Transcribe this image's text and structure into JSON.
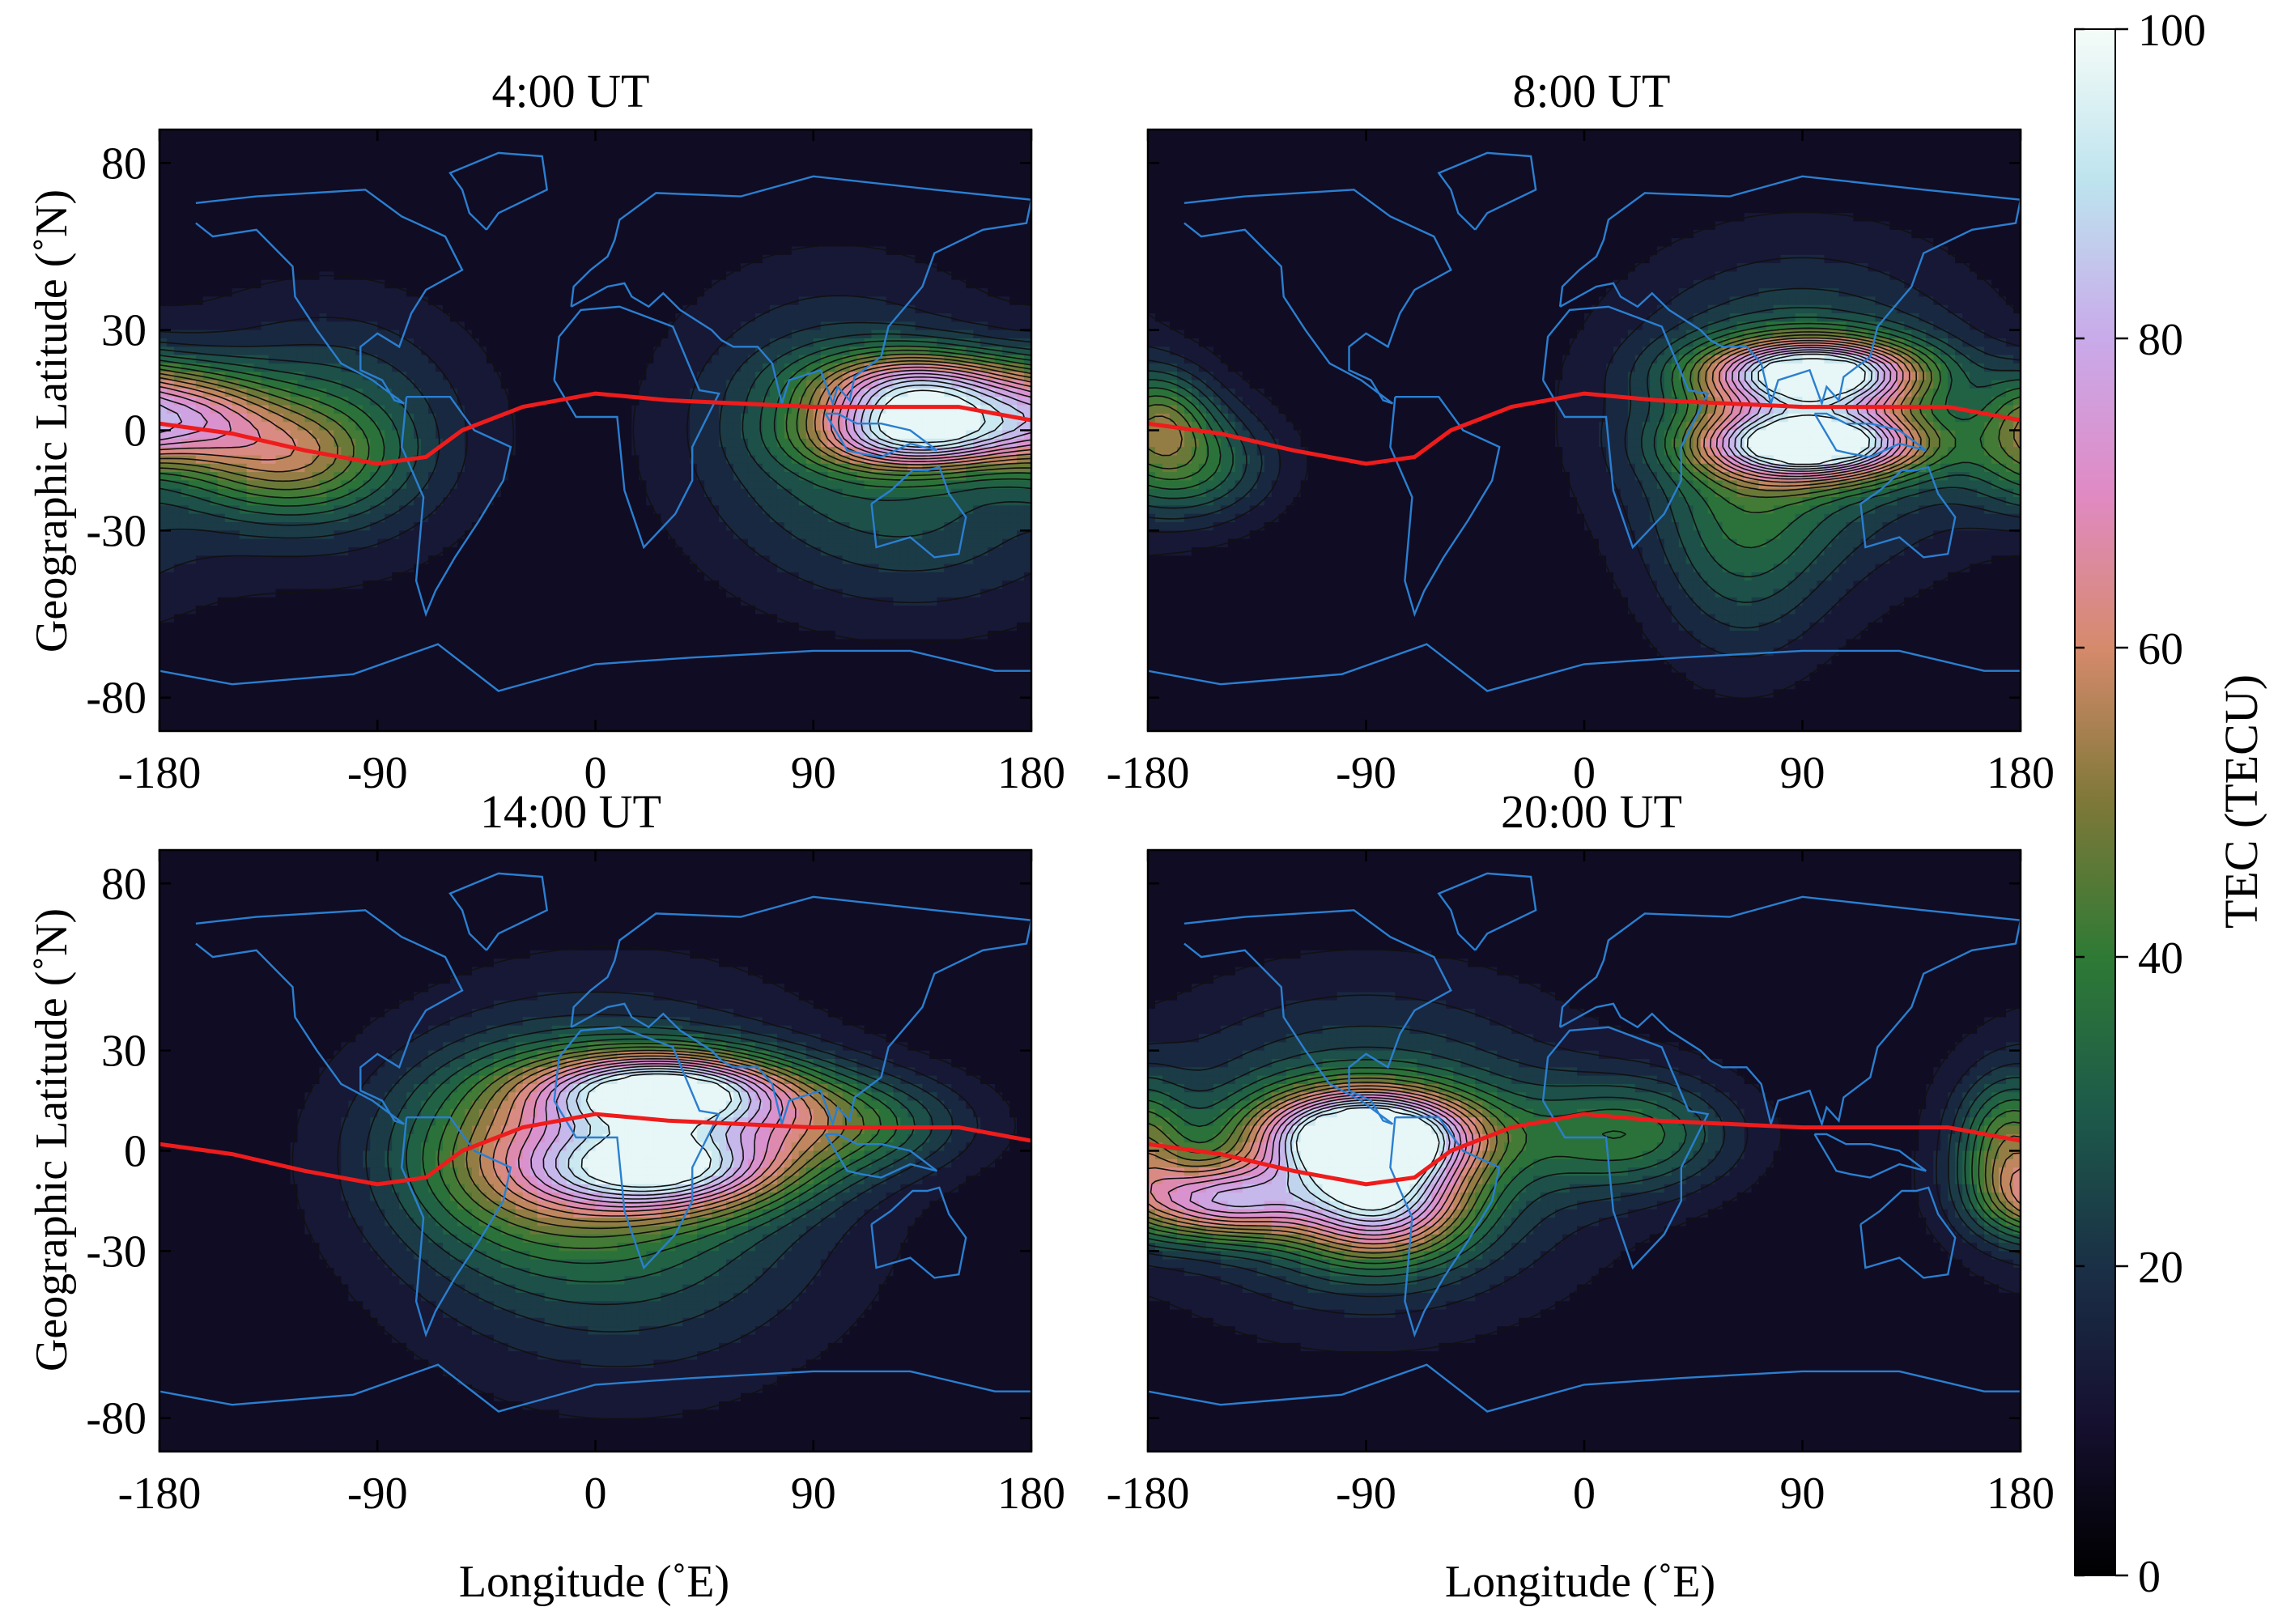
{
  "chart_data": [
    {
      "type": "heatmap",
      "title": "4:00 UT",
      "xlabel": "",
      "ylabel": "Geographic Latitude (˚N)",
      "xlim": [
        -180,
        180
      ],
      "ylim": [
        -90,
        90
      ],
      "x_ticks": [
        "-180",
        "-90",
        "0",
        "90",
        "180"
      ],
      "y_ticks": [
        "80",
        "30",
        "0",
        "-30",
        "-80"
      ],
      "peaks": [
        {
          "lon": 135,
          "lat": 12,
          "tec": 62,
          "sx": 30,
          "sy": 8
        },
        {
          "lon": 135,
          "lat": -2,
          "tec": 60,
          "sx": 30,
          "sy": 7
        },
        {
          "lon": 100,
          "lat": 0,
          "tec": 22,
          "sx": 45,
          "sy": 30
        },
        {
          "lon": 150,
          "lat": -30,
          "tec": 10,
          "sx": 40,
          "sy": 20
        },
        {
          "lon": -170,
          "lat": 5,
          "tec": 40,
          "sx": 25,
          "sy": 10
        },
        {
          "lon": -130,
          "lat": -8,
          "tec": 30,
          "sx": 30,
          "sy": 12
        },
        {
          "lon": -110,
          "lat": 0,
          "tec": 22,
          "sx": 40,
          "sy": 25
        }
      ],
      "equator": [
        [
          -180,
          2
        ],
        [
          -150,
          -1
        ],
        [
          -120,
          -6
        ],
        [
          -90,
          -10
        ],
        [
          -70,
          -8
        ],
        [
          -55,
          0
        ],
        [
          -30,
          7
        ],
        [
          0,
          11
        ],
        [
          30,
          9
        ],
        [
          90,
          7
        ],
        [
          150,
          7
        ],
        [
          180,
          3
        ]
      ]
    },
    {
      "type": "heatmap",
      "title": "8:00 UT",
      "xlabel": "",
      "ylabel": "",
      "xlim": [
        -180,
        180
      ],
      "ylim": [
        -90,
        90
      ],
      "x_ticks": [
        "-180",
        "-90",
        "0",
        "90",
        "180"
      ],
      "y_ticks": [],
      "peaks": [
        {
          "lon": 95,
          "lat": 17,
          "tec": 82,
          "sx": 30,
          "sy": 7
        },
        {
          "lon": 95,
          "lat": -4,
          "tec": 84,
          "sx": 30,
          "sy": 7
        },
        {
          "lon": 90,
          "lat": 5,
          "tec": 30,
          "sx": 50,
          "sy": 30
        },
        {
          "lon": 65,
          "lat": -35,
          "tec": 18,
          "sx": 25,
          "sy": 25
        },
        {
          "lon": -165,
          "lat": -10,
          "tec": 30,
          "sx": 25,
          "sy": 12
        },
        {
          "lon": -175,
          "lat": 5,
          "tec": 25,
          "sx": 15,
          "sy": 10
        }
      ],
      "equator": [
        [
          -180,
          2
        ],
        [
          -150,
          -1
        ],
        [
          -120,
          -6
        ],
        [
          -90,
          -10
        ],
        [
          -70,
          -8
        ],
        [
          -55,
          0
        ],
        [
          -30,
          7
        ],
        [
          0,
          11
        ],
        [
          30,
          9
        ],
        [
          90,
          7
        ],
        [
          150,
          7
        ],
        [
          180,
          3
        ]
      ]
    },
    {
      "type": "heatmap",
      "title": "14:00 UT",
      "xlabel": "Longitude (˚E)",
      "ylabel": "Geographic Latitude (˚N)",
      "xlim": [
        -180,
        180
      ],
      "ylim": [
        -90,
        90
      ],
      "x_ticks": [
        "-180",
        "-90",
        "0",
        "90",
        "180"
      ],
      "y_ticks": [
        "80",
        "30",
        "0",
        "-30",
        "-80"
      ],
      "peaks": [
        {
          "lon": 30,
          "lat": 18,
          "tec": 78,
          "sx": 35,
          "sy": 8
        },
        {
          "lon": 30,
          "lat": -5,
          "tec": 62,
          "sx": 35,
          "sy": 9
        },
        {
          "lon": 10,
          "lat": -10,
          "tec": 30,
          "sx": 60,
          "sy": 35
        },
        {
          "lon": 100,
          "lat": 8,
          "tec": 30,
          "sx": 35,
          "sy": 10
        },
        {
          "lon": -30,
          "lat": 0,
          "tec": 28,
          "sx": 40,
          "sy": 20
        }
      ],
      "equator": [
        [
          -180,
          2
        ],
        [
          -150,
          -1
        ],
        [
          -120,
          -6
        ],
        [
          -90,
          -10
        ],
        [
          -70,
          -8
        ],
        [
          -55,
          0
        ],
        [
          -30,
          7
        ],
        [
          0,
          11
        ],
        [
          30,
          9
        ],
        [
          90,
          7
        ],
        [
          150,
          7
        ],
        [
          180,
          3
        ]
      ]
    },
    {
      "type": "heatmap",
      "title": "20:00 UT",
      "xlabel": "Longitude (˚E)",
      "ylabel": "",
      "xlim": [
        -180,
        180
      ],
      "ylim": [
        -90,
        90
      ],
      "x_ticks": [
        "-180",
        "-90",
        "0",
        "90",
        "180"
      ],
      "y_ticks": [],
      "peaks": [
        {
          "lon": -90,
          "lat": 5,
          "tec": 85,
          "sx": 30,
          "sy": 9
        },
        {
          "lon": -85,
          "lat": -15,
          "tec": 60,
          "sx": 25,
          "sy": 12
        },
        {
          "lon": -150,
          "lat": -15,
          "tec": 55,
          "sx": 25,
          "sy": 8
        },
        {
          "lon": -90,
          "lat": 0,
          "tec": 30,
          "sx": 60,
          "sy": 30
        },
        {
          "lon": 20,
          "lat": 5,
          "tec": 28,
          "sx": 30,
          "sy": 12
        },
        {
          "lon": 175,
          "lat": 0,
          "tec": 35,
          "sx": 15,
          "sy": 15
        }
      ],
      "equator": [
        [
          -180,
          2
        ],
        [
          -150,
          -1
        ],
        [
          -120,
          -6
        ],
        [
          -90,
          -10
        ],
        [
          -70,
          -8
        ],
        [
          -55,
          0
        ],
        [
          -30,
          7
        ],
        [
          0,
          11
        ],
        [
          30,
          9
        ],
        [
          90,
          7
        ],
        [
          150,
          7
        ],
        [
          180,
          3
        ]
      ]
    }
  ],
  "colorbar": {
    "label": "TEC (TECU)",
    "range": [
      0,
      100
    ],
    "ticks": [
      "100",
      "80",
      "60",
      "40",
      "20",
      "0"
    ]
  },
  "colors": {
    "equator_line": "#ee1c1c",
    "coastline": "#2a7fd0",
    "contour": "#111111"
  }
}
